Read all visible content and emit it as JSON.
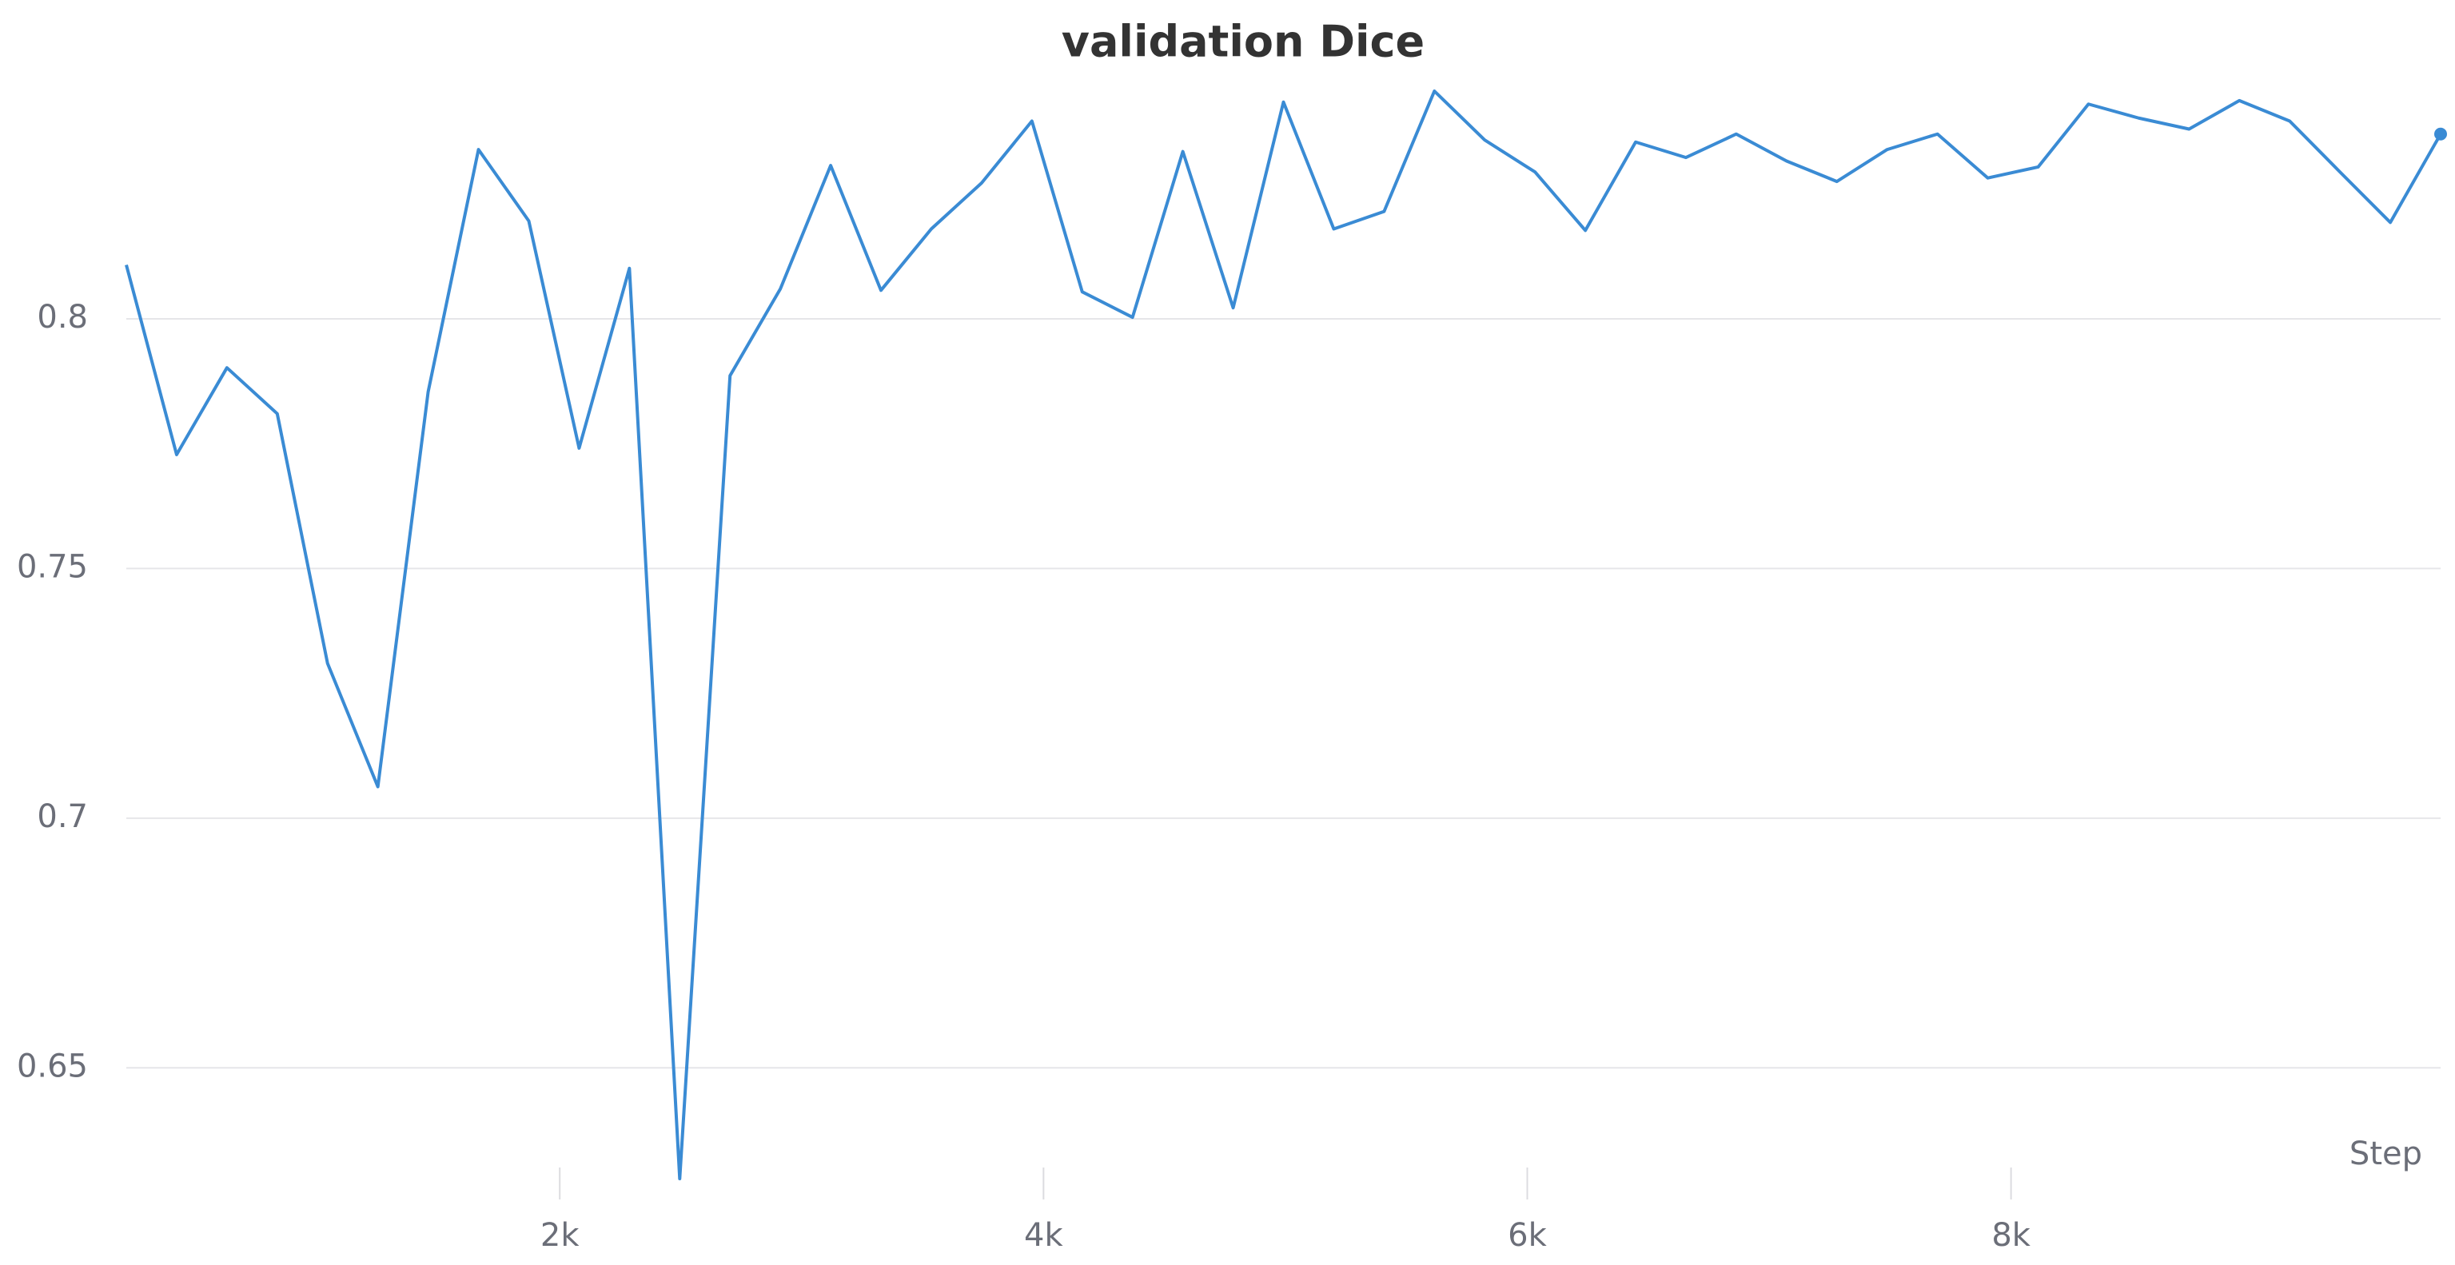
{
  "chart_data": {
    "type": "line",
    "title": "validation Dice",
    "x_label": "Step",
    "x": [
      208,
      416,
      624,
      832,
      1040,
      1248,
      1456,
      1664,
      1872,
      2080,
      2288,
      2496,
      2704,
      2912,
      3120,
      3328,
      3536,
      3744,
      3952,
      4160,
      4368,
      4576,
      4784,
      4992,
      5200,
      5408,
      5616,
      5824,
      6032,
      6240,
      6448,
      6656,
      6864,
      7072,
      7280,
      7488,
      7696,
      7904,
      8112,
      8320,
      8528,
      8736,
      8944,
      9152,
      9360,
      9568,
      9776
    ],
    "series": [
      {
        "color": "#3a8bd4",
        "values": [
          0.8108,
          0.7728,
          0.7902,
          0.781,
          0.731,
          0.7063,
          0.7854,
          0.8339,
          0.8196,
          0.7741,
          0.8101,
          0.6278,
          0.7886,
          0.806,
          0.8307,
          0.8057,
          0.818,
          0.8272,
          0.8396,
          0.8054,
          0.8003,
          0.8335,
          0.8022,
          0.8434,
          0.818,
          0.8215,
          0.8456,
          0.8358,
          0.8294,
          0.8177,
          0.8354,
          0.8323,
          0.837,
          0.8316,
          0.8275,
          0.8339,
          0.837,
          0.8282,
          0.8304,
          0.843,
          0.8402,
          0.838,
          0.8437,
          0.8396,
          0.8294,
          0.8193,
          0.837
        ]
      }
    ],
    "xlim": [
      208,
      9776
    ],
    "ylim": [
      0.623,
      0.848
    ],
    "xticks": [
      {
        "value": 2000,
        "label": "2k"
      },
      {
        "value": 4000,
        "label": "4k"
      },
      {
        "value": 6000,
        "label": "6k"
      },
      {
        "value": 8000,
        "label": "8k"
      }
    ],
    "yticks": [
      0.65,
      0.7,
      0.75,
      0.8
    ],
    "grid": true
  }
}
